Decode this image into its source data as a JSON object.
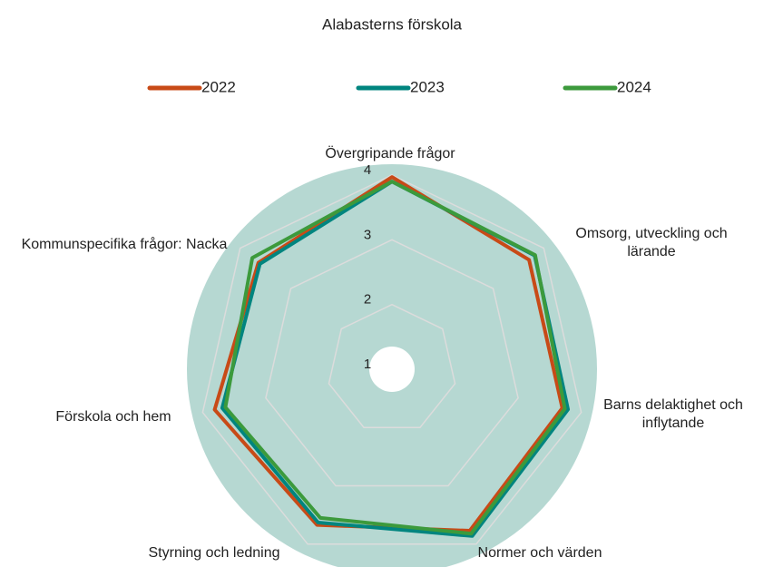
{
  "chart_data": {
    "type": "radar",
    "title": "Alabasterns förskola",
    "categories": [
      "Övergripande frågor",
      "Omsorg, utveckling och lärande",
      "Barns delaktighet och inflytande",
      "Normer och värden",
      "Styrning och ledning",
      "Förskola och hem",
      "Kommunspecifika frågor: Nacka"
    ],
    "series": [
      {
        "name": "2022",
        "color": "#c84a17",
        "values": [
          3.97,
          3.71,
          3.7,
          3.77,
          3.67,
          3.81,
          3.64
        ]
      },
      {
        "name": "2023",
        "color": "#00857f",
        "values": [
          3.9,
          3.82,
          3.79,
          3.86,
          3.63,
          3.69,
          3.61
        ]
      },
      {
        "name": "2024",
        "color": "#3c9a3c",
        "values": [
          3.9,
          3.83,
          3.74,
          3.82,
          3.55,
          3.64,
          3.76
        ]
      }
    ],
    "ylim": [
      1,
      4
    ],
    "yticks": [
      1,
      2,
      3,
      4
    ],
    "grid": true,
    "legend": "top"
  }
}
